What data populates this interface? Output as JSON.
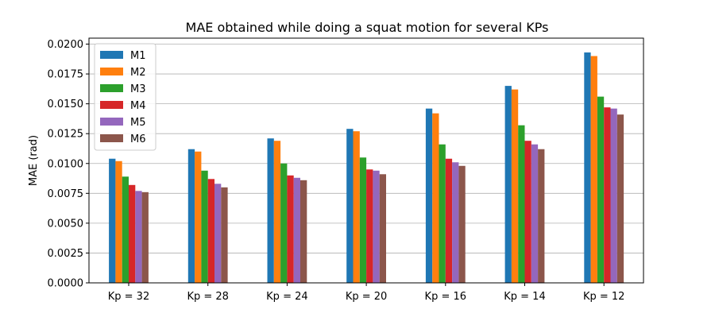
{
  "chart_data": {
    "type": "bar",
    "title": "MAE obtained while doing a squat motion for several KPs",
    "xlabel": "",
    "ylabel": "MAE (rad)",
    "categories": [
      "Kp = 32",
      "Kp = 28",
      "Kp = 24",
      "Kp = 20",
      "Kp = 16",
      "Kp = 14",
      "Kp = 12"
    ],
    "ylim": [
      0,
      0.0205
    ],
    "yticks": [
      0.0,
      0.0025,
      0.005,
      0.0075,
      0.01,
      0.0125,
      0.015,
      0.0175,
      0.02
    ],
    "ytick_labels": [
      "0.0000",
      "0.0025",
      "0.0050",
      "0.0075",
      "0.0100",
      "0.0125",
      "0.0150",
      "0.0175",
      "0.0200"
    ],
    "grid": {
      "y": true,
      "x": false
    },
    "legend_position": "top-left",
    "series": [
      {
        "name": "M1",
        "color": "#1f77b4",
        "values": [
          0.0104,
          0.0112,
          0.0121,
          0.0129,
          0.0146,
          0.0165,
          0.0193
        ]
      },
      {
        "name": "M2",
        "color": "#ff7f0e",
        "values": [
          0.0102,
          0.011,
          0.0119,
          0.0127,
          0.0142,
          0.0162,
          0.019
        ]
      },
      {
        "name": "M3",
        "color": "#2ca02c",
        "values": [
          0.0089,
          0.0094,
          0.01,
          0.0105,
          0.0116,
          0.0132,
          0.0156
        ]
      },
      {
        "name": "M4",
        "color": "#d62728",
        "values": [
          0.0082,
          0.0087,
          0.009,
          0.0095,
          0.0104,
          0.0119,
          0.0147
        ]
      },
      {
        "name": "M5",
        "color": "#9467bd",
        "values": [
          0.0077,
          0.0083,
          0.0088,
          0.0094,
          0.0101,
          0.0116,
          0.0146
        ]
      },
      {
        "name": "M6",
        "color": "#8c564b",
        "values": [
          0.0076,
          0.008,
          0.0086,
          0.0091,
          0.0098,
          0.0112,
          0.0141
        ]
      }
    ]
  }
}
